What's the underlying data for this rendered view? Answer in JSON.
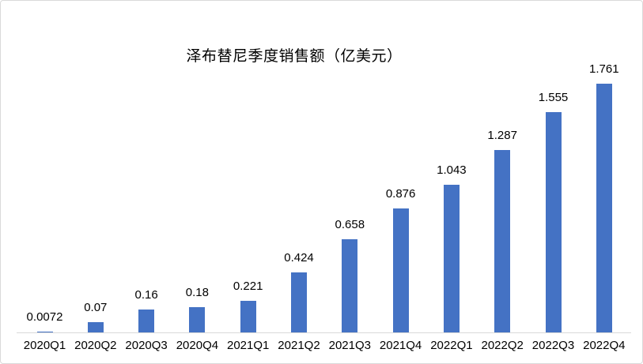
{
  "chart_data": {
    "type": "bar",
    "title": "泽布替尼季度销售额（亿美元）",
    "categories": [
      "2020Q1",
      "2020Q2",
      "2020Q3",
      "2020Q4",
      "2021Q1",
      "2021Q2",
      "2021Q3",
      "2021Q4",
      "2022Q1",
      "2022Q2",
      "2022Q3",
      "2022Q4"
    ],
    "values": [
      0.0072,
      0.07,
      0.16,
      0.18,
      0.221,
      0.424,
      0.658,
      0.876,
      1.043,
      1.287,
      1.555,
      1.761
    ],
    "data_labels": [
      "0.0072",
      "0.07",
      "0.16",
      "0.18",
      "0.221",
      "0.424",
      "0.658",
      "0.876",
      "1.043",
      "1.287",
      "1.555",
      "1.761"
    ],
    "xlabel": "",
    "ylabel": "",
    "ylim": [
      0,
      2.35
    ],
    "grid": false,
    "legend": false,
    "data_label_position": "outside-end",
    "bar_color": "#4472c4",
    "axis_line_color": "#d9d9d9",
    "border_color": "#d9d9d9",
    "text_color": "#000000"
  }
}
